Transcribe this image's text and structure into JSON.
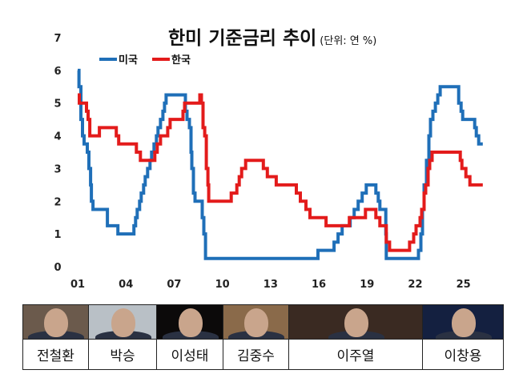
{
  "title": "한미 기준금리 추이",
  "unit": "(단위: 연 %)",
  "legend": [
    {
      "name": "미국",
      "color": "#1f6fb8"
    },
    {
      "name": "한국",
      "color": "#e31b1b"
    }
  ],
  "chart_data": {
    "type": "line",
    "step": true,
    "title": "한미 기준금리 추이",
    "subtitle": "(단위: 연 %)",
    "ylim": [
      0,
      7
    ],
    "y_ticks": [
      "0",
      "1",
      "2",
      "3",
      "4",
      "5",
      "6",
      "7"
    ],
    "x_ticks": [
      "01",
      "04",
      "07",
      "10",
      "13",
      "16",
      "19",
      "22",
      "25"
    ],
    "x_tick_years": [
      2001,
      2004,
      2007,
      2010,
      2013,
      2016,
      2019,
      2022,
      2025
    ],
    "grid": false,
    "legend_position": "top-left",
    "series": [
      {
        "name": "미국",
        "color": "#1f6fb8",
        "points": [
          [
            2001.0,
            6.0
          ],
          [
            2001.08,
            5.5
          ],
          [
            2001.2,
            4.5
          ],
          [
            2001.3,
            4.0
          ],
          [
            2001.4,
            3.75
          ],
          [
            2001.6,
            3.5
          ],
          [
            2001.7,
            3.0
          ],
          [
            2001.8,
            2.5
          ],
          [
            2001.85,
            2.0
          ],
          [
            2001.95,
            1.75
          ],
          [
            2002.85,
            1.25
          ],
          [
            2003.5,
            1.0
          ],
          [
            2004.5,
            1.25
          ],
          [
            2004.6,
            1.5
          ],
          [
            2004.7,
            1.75
          ],
          [
            2004.85,
            2.0
          ],
          [
            2004.95,
            2.25
          ],
          [
            2005.1,
            2.5
          ],
          [
            2005.2,
            2.75
          ],
          [
            2005.35,
            3.0
          ],
          [
            2005.5,
            3.25
          ],
          [
            2005.6,
            3.5
          ],
          [
            2005.75,
            3.75
          ],
          [
            2005.9,
            4.0
          ],
          [
            2006.0,
            4.25
          ],
          [
            2006.15,
            4.5
          ],
          [
            2006.3,
            4.75
          ],
          [
            2006.4,
            5.0
          ],
          [
            2006.5,
            5.25
          ],
          [
            2007.7,
            4.75
          ],
          [
            2007.8,
            4.5
          ],
          [
            2007.95,
            4.25
          ],
          [
            2008.05,
            3.5
          ],
          [
            2008.1,
            3.0
          ],
          [
            2008.2,
            2.25
          ],
          [
            2008.3,
            2.0
          ],
          [
            2008.75,
            1.5
          ],
          [
            2008.85,
            1.0
          ],
          [
            2008.95,
            0.25
          ],
          [
            2015.95,
            0.5
          ],
          [
            2016.95,
            0.75
          ],
          [
            2017.2,
            1.0
          ],
          [
            2017.45,
            1.25
          ],
          [
            2017.95,
            1.5
          ],
          [
            2018.2,
            1.75
          ],
          [
            2018.45,
            2.0
          ],
          [
            2018.7,
            2.25
          ],
          [
            2018.95,
            2.5
          ],
          [
            2019.55,
            2.25
          ],
          [
            2019.7,
            2.0
          ],
          [
            2019.8,
            1.75
          ],
          [
            2020.17,
            1.0
          ],
          [
            2020.2,
            0.25
          ],
          [
            2022.2,
            0.5
          ],
          [
            2022.35,
            1.0
          ],
          [
            2022.45,
            1.75
          ],
          [
            2022.55,
            2.5
          ],
          [
            2022.7,
            3.25
          ],
          [
            2022.85,
            4.0
          ],
          [
            2022.95,
            4.5
          ],
          [
            2023.1,
            4.75
          ],
          [
            2023.25,
            5.0
          ],
          [
            2023.4,
            5.25
          ],
          [
            2023.55,
            5.5
          ],
          [
            2024.7,
            5.0
          ],
          [
            2024.85,
            4.75
          ],
          [
            2024.95,
            4.5
          ],
          [
            2025.7,
            4.25
          ],
          [
            2025.8,
            4.0
          ],
          [
            2025.95,
            3.75
          ],
          [
            2026.2,
            3.75
          ]
        ]
      },
      {
        "name": "한국",
        "color": "#e31b1b",
        "points": [
          [
            2001.0,
            5.25
          ],
          [
            2001.1,
            5.0
          ],
          [
            2001.55,
            4.75
          ],
          [
            2001.65,
            4.5
          ],
          [
            2001.75,
            4.0
          ],
          [
            2002.35,
            4.25
          ],
          [
            2003.4,
            4.0
          ],
          [
            2003.55,
            3.75
          ],
          [
            2004.65,
            3.5
          ],
          [
            2004.9,
            3.25
          ],
          [
            2005.8,
            3.5
          ],
          [
            2005.95,
            3.75
          ],
          [
            2006.15,
            4.0
          ],
          [
            2006.6,
            4.25
          ],
          [
            2006.75,
            4.5
          ],
          [
            2007.55,
            4.75
          ],
          [
            2007.65,
            5.0
          ],
          [
            2008.6,
            5.25
          ],
          [
            2008.7,
            5.0
          ],
          [
            2008.8,
            4.25
          ],
          [
            2008.9,
            4.0
          ],
          [
            2009.0,
            3.0
          ],
          [
            2009.1,
            2.5
          ],
          [
            2009.15,
            2.0
          ],
          [
            2010.55,
            2.25
          ],
          [
            2010.9,
            2.5
          ],
          [
            2011.05,
            2.75
          ],
          [
            2011.2,
            3.0
          ],
          [
            2011.45,
            3.25
          ],
          [
            2012.55,
            3.0
          ],
          [
            2012.8,
            2.75
          ],
          [
            2013.35,
            2.5
          ],
          [
            2014.6,
            2.25
          ],
          [
            2014.85,
            2.0
          ],
          [
            2015.2,
            1.75
          ],
          [
            2015.45,
            1.5
          ],
          [
            2016.45,
            1.25
          ],
          [
            2017.9,
            1.5
          ],
          [
            2018.9,
            1.75
          ],
          [
            2019.55,
            1.5
          ],
          [
            2019.8,
            1.25
          ],
          [
            2020.2,
            0.75
          ],
          [
            2020.4,
            0.5
          ],
          [
            2021.65,
            0.75
          ],
          [
            2021.9,
            1.0
          ],
          [
            2022.05,
            1.25
          ],
          [
            2022.3,
            1.5
          ],
          [
            2022.4,
            1.75
          ],
          [
            2022.55,
            2.25
          ],
          [
            2022.65,
            2.5
          ],
          [
            2022.8,
            3.0
          ],
          [
            2022.9,
            3.25
          ],
          [
            2023.05,
            3.5
          ],
          [
            2024.8,
            3.25
          ],
          [
            2024.9,
            3.0
          ],
          [
            2025.15,
            2.75
          ],
          [
            2025.4,
            2.5
          ],
          [
            2026.2,
            2.5
          ]
        ]
      }
    ]
  },
  "governors": [
    {
      "name": "전철환",
      "photo_bg": "#6b5a4c"
    },
    {
      "name": "박승",
      "photo_bg": "#b9c0c6"
    },
    {
      "name": "이성태",
      "photo_bg": "#0c0a0a"
    },
    {
      "name": "김중수",
      "photo_bg": "#8a6a4a"
    },
    {
      "name": "이주열",
      "photo_bg": "#3a2a22"
    },
    {
      "name": "이창용",
      "photo_bg": "#142040"
    }
  ]
}
